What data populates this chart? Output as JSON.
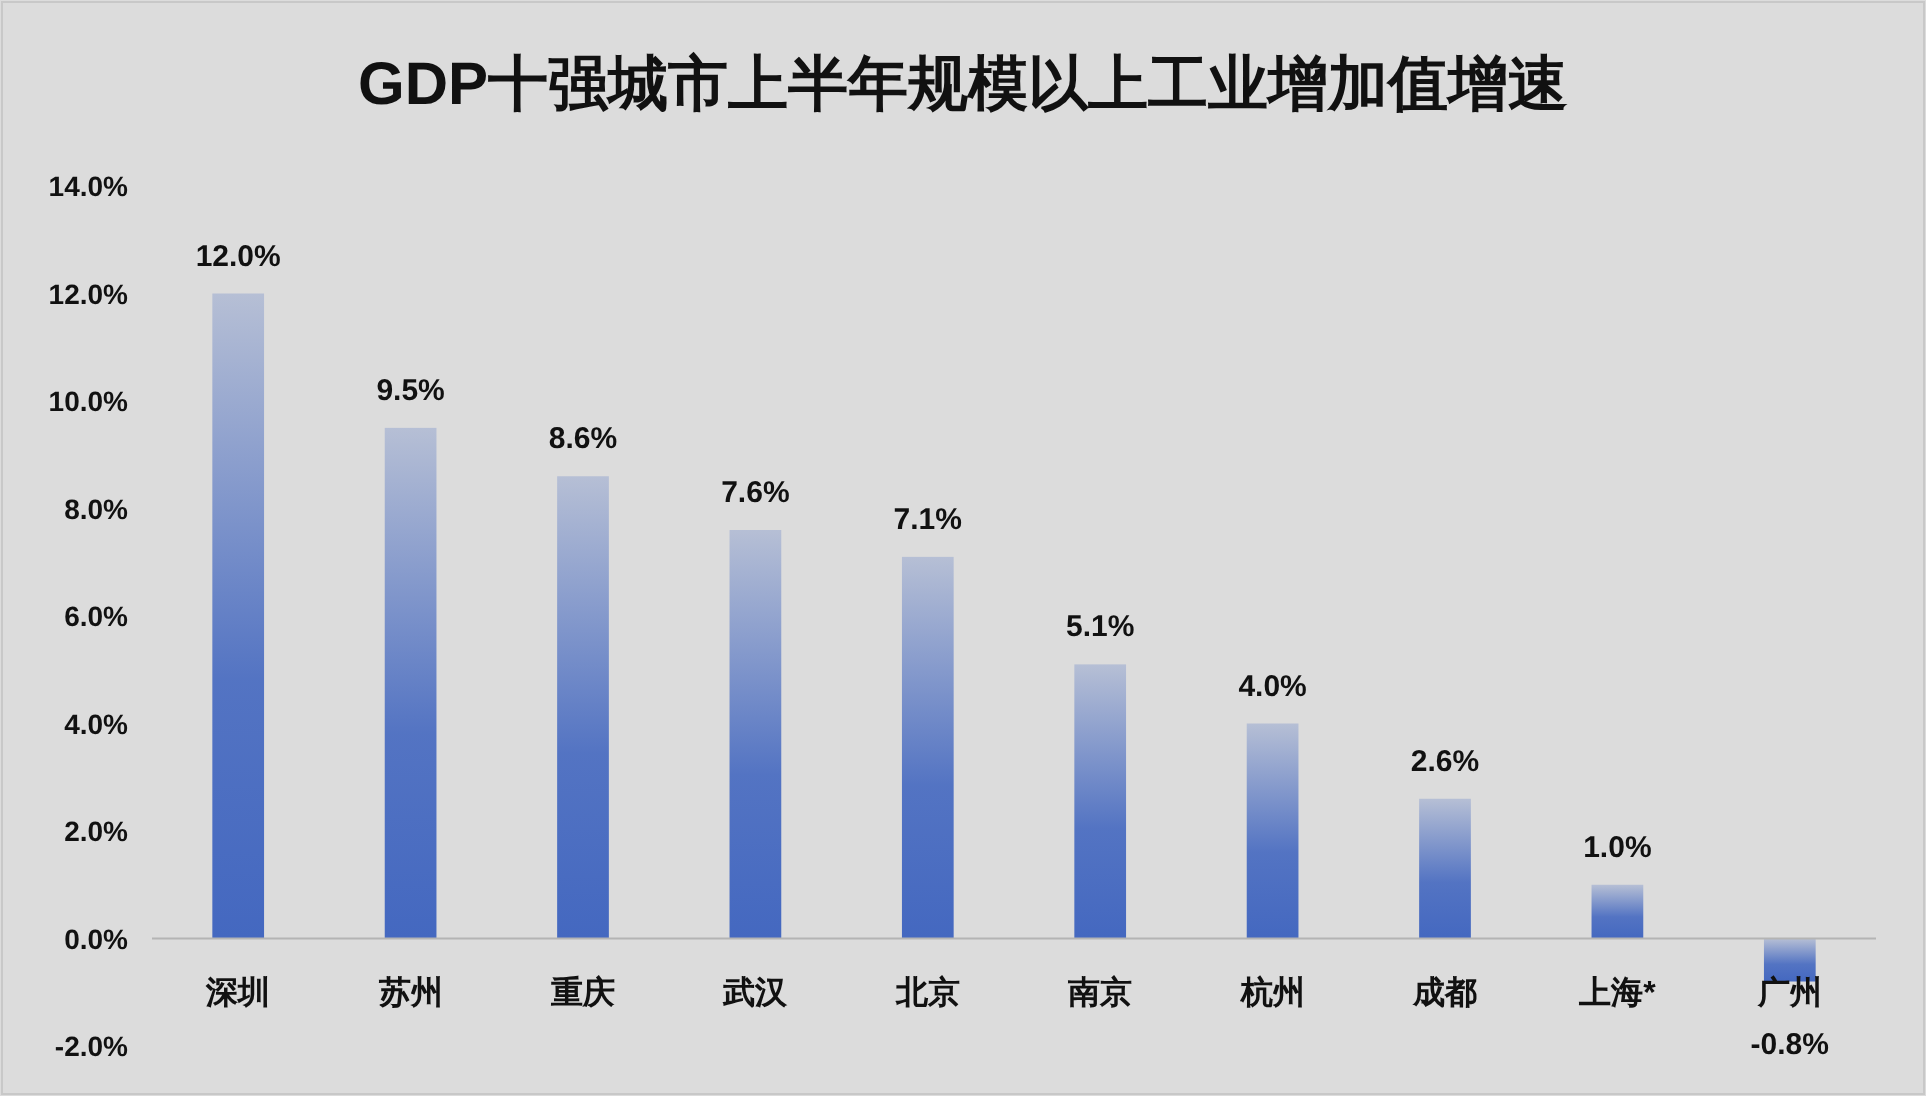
{
  "chart_data": {
    "type": "bar",
    "title": "GDP十强城市上半年规模以上工业增加值增速",
    "categories": [
      "深圳",
      "苏州",
      "重庆",
      "武汉",
      "北京",
      "南京",
      "杭州",
      "成都",
      "上海*",
      "广州"
    ],
    "values": [
      12.0,
      9.5,
      8.6,
      7.6,
      7.1,
      5.1,
      4.0,
      2.6,
      1.0,
      -0.8
    ],
    "value_labels": [
      "12.0%",
      "9.5%",
      "8.6%",
      "7.6%",
      "7.1%",
      "5.1%",
      "4.0%",
      "2.6%",
      "1.0%",
      "-0.8%"
    ],
    "color": "#4468c0",
    "ylim": [
      -2,
      14
    ],
    "yticks": [
      {
        "value": -2,
        "label": "-2.0%"
      },
      {
        "value": 0,
        "label": "0.0%"
      },
      {
        "value": 2,
        "label": "2.0%"
      },
      {
        "value": 4,
        "label": "4.0%"
      },
      {
        "value": 6,
        "label": "6.0%"
      },
      {
        "value": 8,
        "label": "8.0%"
      },
      {
        "value": 10,
        "label": "10.0%"
      },
      {
        "value": 12,
        "label": "12.0%"
      },
      {
        "value": 14,
        "label": "14.0%"
      }
    ],
    "grid": false
  }
}
